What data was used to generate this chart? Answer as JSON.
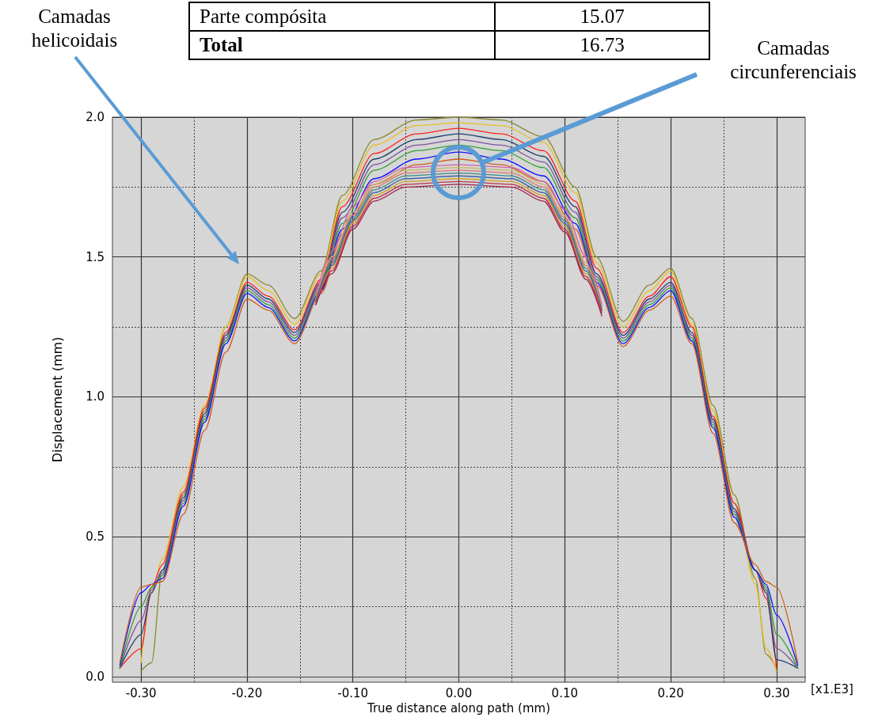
{
  "chart_data": {
    "type": "line",
    "xlabel": "True distance along path (mm)",
    "ylabel": "Displacement (mm)",
    "annotations": [
      "Parte compósita",
      "15.07",
      "Total",
      "16.73",
      "[x1.E3]",
      "Camadas helicoidais",
      "Camadas circunferenciais"
    ],
    "x": [
      -0.32,
      -0.3,
      -0.29,
      -0.28,
      -0.26,
      -0.24,
      -0.22,
      -0.2,
      -0.18,
      -0.155,
      -0.13,
      -0.11,
      -0.08,
      -0.04,
      0,
      0.04,
      0.08,
      0.11,
      0.13,
      0.155,
      0.18,
      0.2,
      0.22,
      0.24,
      0.26,
      0.28,
      0.29,
      0.3,
      0.32
    ],
    "xlim": [
      -0.327,
      0.327
    ],
    "xticks": [
      {
        "value": -0.3,
        "label": "-0.30"
      },
      {
        "value": -0.2,
        "label": "-0.20"
      },
      {
        "value": -0.1,
        "label": "-0.10"
      },
      {
        "value": 0,
        "label": "0.00"
      },
      {
        "value": 0.1,
        "label": "0.10"
      },
      {
        "value": 0.2,
        "label": "0.20"
      },
      {
        "value": 0.3,
        "label": "0.30"
      }
    ],
    "ylim": [
      -0.02,
      2.0
    ],
    "yticks": [
      {
        "value": 0,
        "label": "0.0"
      },
      {
        "value": 0.5,
        "label": "0.5"
      },
      {
        "value": 1,
        "label": "1.0"
      },
      {
        "value": 1.5,
        "label": "1.5"
      },
      {
        "value": 2,
        "label": "2.0"
      }
    ],
    "grid": true,
    "marker": "none",
    "series": [
      {
        "color": "#8a8a30",
        "values": [
          null,
          0.02,
          0.05,
          0.38,
          0.65,
          0.95,
          1.25,
          1.44,
          1.4,
          1.28,
          1.45,
          1.72,
          1.92,
          1.99,
          2.0,
          1.99,
          1.93,
          1.75,
          1.5,
          1.27,
          1.4,
          1.46,
          1.28,
          0.97,
          0.65,
          0.35,
          0.08,
          0.03,
          null
        ]
      },
      {
        "color": "#e8c020",
        "values": [
          null,
          0.05,
          0.3,
          0.42,
          0.68,
          0.97,
          1.25,
          1.43,
          1.38,
          1.26,
          1.44,
          1.7,
          1.9,
          1.97,
          1.98,
          1.97,
          1.91,
          1.73,
          1.48,
          1.25,
          1.38,
          1.45,
          1.26,
          0.95,
          0.62,
          0.33,
          0.1,
          0.02,
          null
        ]
      },
      {
        "color": "#ff2020",
        "values": [
          0.03,
          0.1,
          0.32,
          0.4,
          0.66,
          0.96,
          1.23,
          1.41,
          1.36,
          1.24,
          1.42,
          1.68,
          1.87,
          1.94,
          1.96,
          1.94,
          1.88,
          1.7,
          1.46,
          1.23,
          1.36,
          1.43,
          1.25,
          0.93,
          0.62,
          0.38,
          0.28,
          0.03,
          null
        ]
      },
      {
        "color": "#1f3f6f",
        "values": [
          0.03,
          0.15,
          0.3,
          0.38,
          0.64,
          0.94,
          1.22,
          1.4,
          1.35,
          1.23,
          1.41,
          1.66,
          1.85,
          1.92,
          1.94,
          1.92,
          1.86,
          1.68,
          1.44,
          1.22,
          1.35,
          1.41,
          1.23,
          0.92,
          0.6,
          0.38,
          0.3,
          0.06,
          0.03
        ]
      },
      {
        "color": "#8050a0",
        "values": [
          0.03,
          0.2,
          0.31,
          0.37,
          0.63,
          0.93,
          1.21,
          1.39,
          1.34,
          1.22,
          1.4,
          1.64,
          1.83,
          1.9,
          1.92,
          1.9,
          1.84,
          1.66,
          1.43,
          1.21,
          1.34,
          1.4,
          1.22,
          0.91,
          0.59,
          0.38,
          0.31,
          0.1,
          0.03
        ]
      },
      {
        "color": "#30a030",
        "values": [
          0.03,
          0.25,
          0.32,
          0.36,
          0.62,
          0.92,
          1.2,
          1.38,
          1.33,
          1.21,
          1.39,
          1.62,
          1.81,
          1.88,
          1.9,
          1.88,
          1.82,
          1.64,
          1.42,
          1.2,
          1.33,
          1.39,
          1.21,
          0.9,
          0.58,
          0.38,
          0.32,
          0.15,
          0.03
        ]
      },
      {
        "color": "#1010ff",
        "values": [
          0.04,
          0.3,
          0.33,
          0.35,
          0.61,
          0.91,
          1.19,
          1.37,
          1.32,
          1.2,
          1.38,
          1.6,
          1.78,
          1.85,
          1.875,
          1.85,
          1.79,
          1.62,
          1.41,
          1.19,
          1.32,
          1.38,
          1.2,
          0.89,
          0.57,
          0.38,
          0.33,
          0.22,
          0.04
        ]
      },
      {
        "color": "#d06020",
        "values": [
          0.05,
          0.32,
          0.33,
          0.34,
          0.58,
          0.88,
          1.16,
          1.35,
          1.31,
          1.19,
          1.37,
          1.58,
          1.76,
          1.83,
          1.85,
          1.83,
          1.77,
          1.6,
          1.4,
          1.18,
          1.31,
          1.36,
          1.19,
          0.87,
          0.55,
          0.4,
          0.34,
          0.32,
          0.05
        ]
      },
      {
        "color": "#d45fa8",
        "x": [
          -0.135,
          -0.12,
          -0.1,
          -0.08,
          -0.05,
          0,
          0.05,
          0.08,
          0.1,
          0.12,
          0.135
        ],
        "values": [
          1.36,
          1.52,
          1.68,
          1.77,
          1.82,
          1.83,
          1.82,
          1.77,
          1.67,
          1.5,
          1.33
        ]
      },
      {
        "color": "#c8b560",
        "x": [
          -0.135,
          -0.12,
          -0.1,
          -0.08,
          -0.05,
          0,
          0.05,
          0.08,
          0.1,
          0.12,
          0.135
        ],
        "values": [
          1.35,
          1.5,
          1.66,
          1.76,
          1.81,
          1.82,
          1.81,
          1.76,
          1.65,
          1.48,
          1.32
        ]
      },
      {
        "color": "#e07070",
        "x": [
          -0.135,
          -0.12,
          -0.1,
          -0.08,
          -0.05,
          0,
          0.05,
          0.08,
          0.1,
          0.12,
          0.135
        ],
        "values": [
          1.35,
          1.49,
          1.65,
          1.75,
          1.8,
          1.81,
          1.8,
          1.75,
          1.64,
          1.47,
          1.32
        ]
      },
      {
        "color": "#3a8a8a",
        "x": [
          -0.135,
          -0.12,
          -0.1,
          -0.08,
          -0.05,
          0,
          0.05,
          0.08,
          0.1,
          0.12,
          0.135
        ],
        "values": [
          1.34,
          1.48,
          1.64,
          1.74,
          1.79,
          1.8,
          1.79,
          1.74,
          1.63,
          1.46,
          1.31
        ]
      },
      {
        "color": "#4060a0",
        "x": [
          -0.135,
          -0.12,
          -0.1,
          -0.08,
          -0.05,
          0,
          0.05,
          0.08,
          0.1,
          0.12,
          0.135
        ],
        "values": [
          1.34,
          1.47,
          1.63,
          1.73,
          1.78,
          1.79,
          1.78,
          1.73,
          1.62,
          1.45,
          1.31
        ]
      },
      {
        "color": "#d0a020",
        "x": [
          -0.135,
          -0.12,
          -0.1,
          -0.08,
          -0.05,
          0,
          0.05,
          0.08,
          0.1,
          0.12,
          0.135
        ],
        "values": [
          1.33,
          1.46,
          1.62,
          1.72,
          1.77,
          1.78,
          1.77,
          1.72,
          1.61,
          1.44,
          1.3
        ]
      },
      {
        "color": "#c0304a",
        "x": [
          -0.135,
          -0.12,
          -0.1,
          -0.08,
          -0.05,
          0,
          0.05,
          0.08,
          0.1,
          0.12,
          0.135
        ],
        "values": [
          1.33,
          1.45,
          1.61,
          1.71,
          1.76,
          1.77,
          1.76,
          1.71,
          1.6,
          1.43,
          1.3
        ]
      },
      {
        "color": "#a0204a",
        "x": [
          -0.135,
          -0.12,
          -0.1,
          -0.08,
          -0.05,
          0,
          0.05,
          0.08,
          0.1,
          0.12,
          0.135
        ],
        "values": [
          1.33,
          1.44,
          1.6,
          1.7,
          1.75,
          1.76,
          1.75,
          1.7,
          1.59,
          1.42,
          1.29
        ]
      }
    ]
  }
}
